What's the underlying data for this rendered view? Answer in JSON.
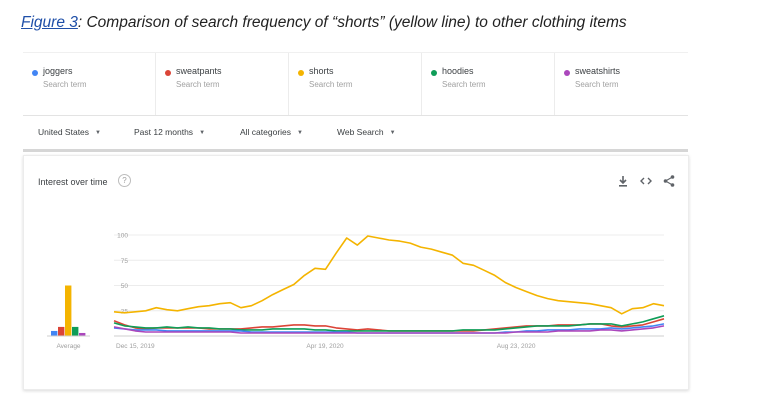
{
  "caption": {
    "figure_link": "Figure 3",
    "text": ": Comparison of search frequency of  “shorts” (yellow line) to other clothing items"
  },
  "search_terms": [
    {
      "name": "joggers",
      "sub": "Search term",
      "color": "#4285f4"
    },
    {
      "name": "sweatpants",
      "sub": "Search term",
      "color": "#db4437"
    },
    {
      "name": "shorts",
      "sub": "Search term",
      "color": "#f4b400"
    },
    {
      "name": "hoodies",
      "sub": "Search term",
      "color": "#0f9d58"
    },
    {
      "name": "sweatshirts",
      "sub": "Search term",
      "color": "#ab47bc"
    }
  ],
  "filters": [
    {
      "label": "United States"
    },
    {
      "label": "Past 12 months"
    },
    {
      "label": "All categories"
    },
    {
      "label": "Web Search"
    }
  ],
  "card": {
    "title": "Interest over time",
    "help": "?",
    "icons": [
      "download-icon",
      "embed-icon",
      "share-icon"
    ]
  },
  "chart_data": {
    "type": "line",
    "title": "Interest over time",
    "ylim": [
      0,
      100
    ],
    "y_ticks": [
      "100",
      "75",
      "50",
      "25"
    ],
    "x_tick_labels": [
      "Dec 15, 2019",
      "Apr 19, 2020",
      "Aug 23, 2020"
    ],
    "x_tick_positions": [
      0,
      18,
      36
    ],
    "grid": true,
    "average_label": "Average",
    "average": [
      {
        "name": "joggers",
        "value": 5
      },
      {
        "name": "sweatpants",
        "value": 9
      },
      {
        "name": "shorts",
        "value": 50
      },
      {
        "name": "hoodies",
        "value": 9
      },
      {
        "name": "sweatshirts",
        "value": 3
      }
    ],
    "series": [
      {
        "name": "shorts",
        "color": "#f4b400",
        "values": [
          24,
          23,
          24,
          25,
          28,
          26,
          25,
          27,
          29,
          30,
          32,
          33,
          28,
          30,
          35,
          41,
          46,
          51,
          60,
          67,
          66,
          82,
          97,
          90,
          99,
          97,
          95,
          94,
          92,
          88,
          86,
          83,
          80,
          72,
          70,
          65,
          60,
          53,
          48,
          44,
          40,
          37,
          35,
          34,
          33,
          32,
          30,
          28,
          22,
          27,
          28,
          32,
          30
        ]
      },
      {
        "name": "sweatpants",
        "color": "#db4437",
        "values": [
          15,
          11,
          8,
          7,
          8,
          8,
          8,
          8,
          8,
          7,
          7,
          7,
          7,
          8,
          9,
          9,
          10,
          11,
          11,
          10,
          10,
          8,
          7,
          6,
          7,
          6,
          5,
          5,
          5,
          5,
          5,
          5,
          5,
          5,
          5,
          6,
          7,
          8,
          9,
          10,
          10,
          10,
          11,
          11,
          11,
          12,
          12,
          10,
          9,
          10,
          11,
          14,
          17
        ]
      },
      {
        "name": "hoodies",
        "color": "#0f9d58",
        "values": [
          13,
          10,
          9,
          8,
          8,
          9,
          8,
          9,
          8,
          8,
          7,
          7,
          6,
          6,
          6,
          7,
          7,
          7,
          7,
          6,
          6,
          5,
          5,
          5,
          5,
          5,
          5,
          5,
          5,
          5,
          5,
          5,
          5,
          6,
          6,
          6,
          6,
          7,
          8,
          9,
          10,
          10,
          10,
          10,
          11,
          12,
          12,
          12,
          10,
          12,
          14,
          17,
          20
        ]
      },
      {
        "name": "joggers",
        "color": "#4285f4",
        "values": [
          8,
          7,
          6,
          6,
          6,
          5,
          5,
          5,
          5,
          5,
          5,
          5,
          5,
          4,
          4,
          4,
          4,
          4,
          4,
          4,
          4,
          4,
          4,
          3,
          3,
          3,
          3,
          3,
          3,
          3,
          3,
          3,
          3,
          3,
          3,
          3,
          3,
          4,
          4,
          5,
          5,
          6,
          6,
          6,
          7,
          7,
          7,
          8,
          7,
          8,
          9,
          10,
          12
        ]
      },
      {
        "name": "sweatshirts",
        "color": "#ab47bc",
        "values": [
          9,
          7,
          5,
          4,
          4,
          4,
          4,
          4,
          4,
          4,
          4,
          4,
          3,
          3,
          3,
          3,
          3,
          3,
          3,
          3,
          3,
          3,
          3,
          3,
          3,
          3,
          3,
          3,
          3,
          3,
          3,
          3,
          3,
          3,
          3,
          3,
          3,
          3,
          4,
          4,
          4,
          4,
          5,
          5,
          5,
          5,
          6,
          6,
          5,
          6,
          7,
          8,
          10
        ]
      }
    ]
  }
}
